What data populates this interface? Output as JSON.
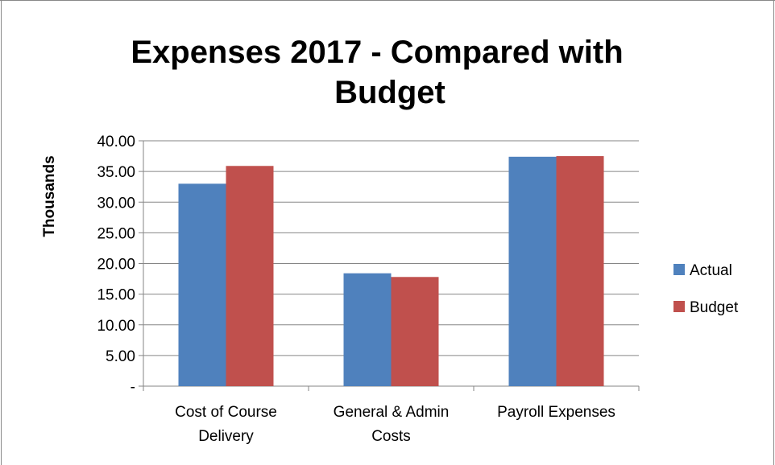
{
  "chart_data": {
    "type": "bar",
    "title": "Expenses 2017 - Compared with Budget",
    "title_lines": [
      "Expenses 2017 - Compared with",
      "Budget"
    ],
    "xlabel": "",
    "ylabel": "Thousands",
    "ylim": [
      0,
      40
    ],
    "yticks": [
      "-",
      "5.00",
      "10.00",
      "15.00",
      "20.00",
      "25.00",
      "30.00",
      "35.00",
      "40.00"
    ],
    "categories": [
      [
        "Cost of Course",
        "Delivery"
      ],
      [
        "General & Admin",
        "Costs"
      ],
      [
        "Payroll Expenses"
      ]
    ],
    "series": [
      {
        "name": "Actual",
        "color": "#4f81bd",
        "values": [
          33.0,
          18.4,
          37.4
        ]
      },
      {
        "name": "Budget",
        "color": "#c0504d",
        "values": [
          35.9,
          17.8,
          37.5
        ]
      }
    ],
    "grid": true,
    "legend_position": "right"
  }
}
